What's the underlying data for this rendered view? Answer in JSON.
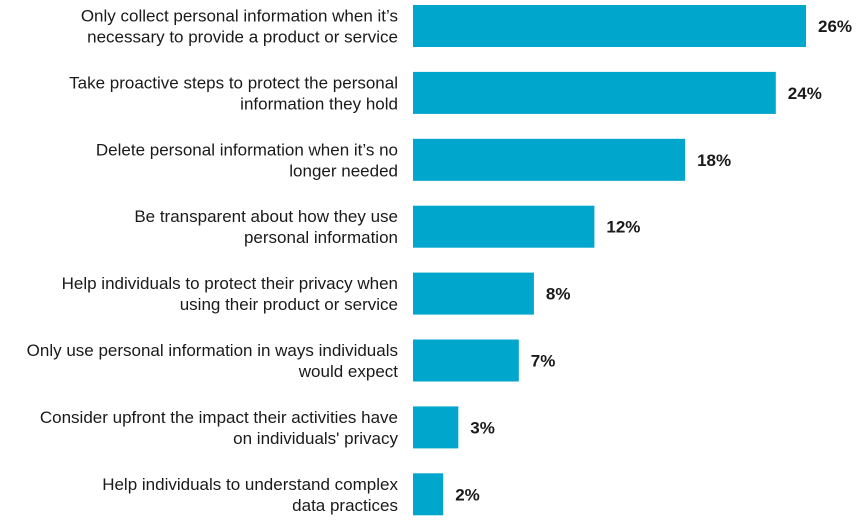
{
  "chart_data": {
    "type": "bar",
    "orientation": "horizontal",
    "categories": [
      [
        "Only collect personal information when it’s",
        "necessary to provide a product or service"
      ],
      [
        "Take proactive steps to protect the personal",
        "information they hold"
      ],
      [
        "Delete personal information when it’s no",
        "longer needed"
      ],
      [
        "Be transparent about how they use",
        "personal information"
      ],
      [
        "Help individuals to protect their privacy when",
        "using their product or service"
      ],
      [
        "Only use personal information in ways individuals",
        "would expect"
      ],
      [
        "Consider upfront the impact their activities have",
        "on individuals' privacy"
      ],
      [
        "Help individuals to understand complex",
        "data practices"
      ]
    ],
    "values": [
      26,
      24,
      18,
      12,
      8,
      7,
      3,
      2
    ],
    "value_labels": [
      "26%",
      "24%",
      "18%",
      "12%",
      "8%",
      "7%",
      "3%",
      "2%"
    ],
    "unit": "%",
    "bar_color": "#00a6cc",
    "title": "",
    "xlabel": "",
    "ylabel": "",
    "grid": false,
    "legend": "none"
  }
}
